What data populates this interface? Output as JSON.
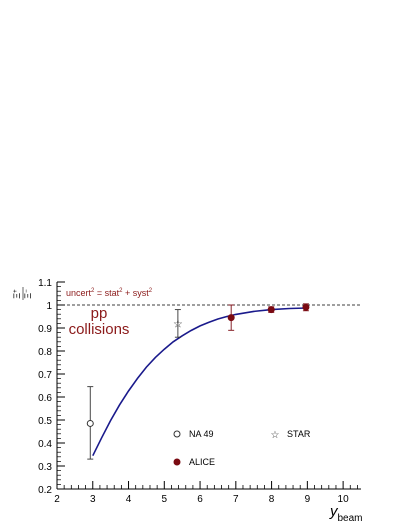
{
  "chart_data": {
    "type": "scatter",
    "x_axis": {
      "label": "y",
      "label_subscript": "beam",
      "range": [
        2,
        10.5
      ],
      "ticks": [
        2,
        3,
        4,
        5,
        6,
        7,
        8,
        9,
        10
      ],
      "tick_labels": [
        "2",
        "3",
        "4",
        "5",
        "6",
        "7",
        "8",
        "9",
        "10"
      ]
    },
    "y_axis": {
      "label_numerator": "Ξ",
      "label_numerator_sup": "+",
      "label_denominator": "Ξ",
      "label_denominator_sup": "−",
      "range": [
        0.2,
        1.1
      ],
      "ticks": [
        0.2,
        0.3,
        0.4,
        0.5,
        0.6,
        0.7,
        0.8,
        0.9,
        1.0,
        1.1
      ],
      "tick_labels": [
        "0.2",
        "0.3",
        "0.4",
        "0.5",
        "0.6",
        "0.7",
        "0.8",
        "0.9",
        "1",
        "1.1"
      ]
    },
    "annotation_uncert": {
      "t1": "uncert",
      "s1": "2",
      "t2": " = stat",
      "s2": "2",
      "t3": " + syst",
      "s3": "2"
    },
    "annotation_system": [
      "pp",
      "collisions"
    ],
    "reference_line": 1.0,
    "grid": false,
    "series": [
      {
        "name": "NA 49",
        "marker": "open-circle",
        "color": "#333333",
        "points": [
          {
            "x": 2.93,
            "y": 0.485,
            "err_low": 0.155,
            "err_high": 0.16
          }
        ]
      },
      {
        "name": "STAR",
        "marker": "open-star",
        "color": "#333333",
        "points": [
          {
            "x": 5.38,
            "y": 0.92,
            "err_low": 0.06,
            "err_high": 0.06
          }
        ]
      },
      {
        "name": "ALICE",
        "marker": "filled-circle",
        "color": "#7a0a12",
        "points": [
          {
            "x": 6.87,
            "y": 0.945,
            "err_low": 0.055,
            "err_high": 0.055
          },
          {
            "x": 7.99,
            "y": 0.98,
            "err_low": 0.012,
            "err_high": 0.012
          },
          {
            "x": 8.96,
            "y": 0.99,
            "err_low": 0.015,
            "err_high": 0.015
          }
        ]
      }
    ],
    "fit_curve": {
      "color": "#1a1a8c",
      "points": [
        {
          "x": 3.0,
          "y": 0.345
        },
        {
          "x": 3.25,
          "y": 0.423
        },
        {
          "x": 3.5,
          "y": 0.498
        },
        {
          "x": 3.75,
          "y": 0.566
        },
        {
          "x": 4.0,
          "y": 0.626
        },
        {
          "x": 4.25,
          "y": 0.681
        },
        {
          "x": 4.5,
          "y": 0.73
        },
        {
          "x": 4.75,
          "y": 0.772
        },
        {
          "x": 5.0,
          "y": 0.808
        },
        {
          "x": 5.25,
          "y": 0.84
        },
        {
          "x": 5.5,
          "y": 0.866
        },
        {
          "x": 5.75,
          "y": 0.889
        },
        {
          "x": 6.0,
          "y": 0.909
        },
        {
          "x": 6.25,
          "y": 0.925
        },
        {
          "x": 6.5,
          "y": 0.939
        },
        {
          "x": 6.75,
          "y": 0.95
        },
        {
          "x": 7.0,
          "y": 0.959
        },
        {
          "x": 7.5,
          "y": 0.972
        },
        {
          "x": 8.0,
          "y": 0.98
        },
        {
          "x": 8.5,
          "y": 0.985
        },
        {
          "x": 9.0,
          "y": 0.987
        }
      ]
    },
    "legend_placement": "bottom-center"
  }
}
